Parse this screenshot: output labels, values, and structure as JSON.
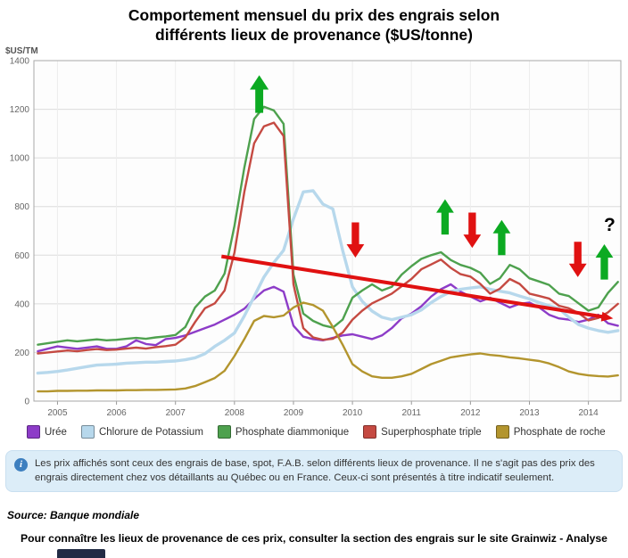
{
  "title": {
    "line1": "Comportement mensuel du prix des engrais selon",
    "line2": "différents lieux de provenance ($US/tonne)"
  },
  "chart_data": {
    "type": "line",
    "title": "Comportement mensuel du prix des engrais selon différents lieux de provenance ($US/tonne)",
    "y_axis_label": "$US/TM",
    "ylim": [
      0,
      1400
    ],
    "y_ticks": [
      0,
      200,
      400,
      600,
      800,
      1000,
      1200,
      1400
    ],
    "xlim": [
      2004.6,
      2014.55
    ],
    "x_tick_years": [
      2005,
      2006,
      2007,
      2008,
      2009,
      2010,
      2011,
      2012,
      2013,
      2014
    ],
    "grid": true,
    "legend_position": "bottom",
    "x": [
      2004.667,
      2004.833,
      2005,
      2005.167,
      2005.333,
      2005.5,
      2005.667,
      2005.833,
      2006,
      2006.167,
      2006.333,
      2006.5,
      2006.667,
      2006.833,
      2007,
      2007.167,
      2007.333,
      2007.5,
      2007.667,
      2007.833,
      2008,
      2008.167,
      2008.333,
      2008.5,
      2008.667,
      2008.833,
      2009,
      2009.167,
      2009.333,
      2009.5,
      2009.667,
      2009.833,
      2010,
      2010.167,
      2010.333,
      2010.5,
      2010.667,
      2010.833,
      2011,
      2011.167,
      2011.333,
      2011.5,
      2011.667,
      2011.833,
      2012,
      2012.167,
      2012.333,
      2012.5,
      2012.667,
      2012.833,
      2013,
      2013.167,
      2013.333,
      2013.5,
      2013.667,
      2013.833,
      2014,
      2014.167,
      2014.333,
      2014.5
    ],
    "series": [
      {
        "name": "Urée",
        "slug": "uree",
        "color": "#8d3cc8",
        "width": 2.4,
        "values": [
          205,
          215,
          225,
          220,
          215,
          220,
          225,
          215,
          215,
          225,
          250,
          235,
          230,
          255,
          260,
          270,
          285,
          300,
          315,
          335,
          355,
          380,
          420,
          455,
          470,
          450,
          310,
          265,
          255,
          250,
          260,
          270,
          275,
          265,
          255,
          270,
          300,
          340,
          360,
          390,
          430,
          460,
          480,
          450,
          430,
          410,
          425,
          405,
          385,
          400,
          405,
          385,
          355,
          340,
          335,
          325,
          335,
          355,
          320,
          310
        ]
      },
      {
        "name": "Chlorure de Potassium",
        "slug": "chlorure-de-potassium",
        "color": "#b7d8ec",
        "width": 3.4,
        "values": [
          115,
          118,
          122,
          128,
          135,
          142,
          148,
          150,
          152,
          156,
          158,
          160,
          160,
          163,
          165,
          170,
          178,
          195,
          225,
          250,
          280,
          350,
          430,
          510,
          570,
          620,
          750,
          860,
          865,
          810,
          790,
          620,
          470,
          410,
          370,
          345,
          335,
          345,
          355,
          375,
          405,
          430,
          450,
          460,
          465,
          470,
          460,
          452,
          445,
          432,
          420,
          405,
          392,
          380,
          345,
          315,
          300,
          290,
          283,
          290
        ]
      },
      {
        "name": "Phosphate diammonique",
        "slug": "phosphate-diammonique",
        "color": "#4ea14e",
        "width": 2.4,
        "values": [
          232,
          238,
          244,
          250,
          246,
          250,
          254,
          250,
          252,
          256,
          260,
          256,
          262,
          266,
          272,
          305,
          385,
          430,
          455,
          525,
          720,
          960,
          1160,
          1210,
          1195,
          1140,
          520,
          360,
          330,
          312,
          302,
          335,
          425,
          455,
          480,
          455,
          470,
          520,
          555,
          585,
          600,
          612,
          580,
          560,
          548,
          528,
          482,
          505,
          560,
          542,
          505,
          492,
          478,
          442,
          432,
          402,
          372,
          385,
          445,
          490
        ]
      },
      {
        "name": "Superphosphate triple",
        "slug": "superphosphate-triple",
        "color": "#c54a42",
        "width": 2.4,
        "values": [
          196,
          200,
          204,
          208,
          205,
          210,
          214,
          210,
          212,
          216,
          220,
          216,
          222,
          226,
          232,
          262,
          325,
          382,
          402,
          455,
          610,
          860,
          1060,
          1130,
          1145,
          1090,
          480,
          300,
          262,
          252,
          256,
          282,
          335,
          372,
          402,
          422,
          442,
          472,
          502,
          542,
          562,
          582,
          548,
          522,
          512,
          482,
          442,
          462,
          502,
          482,
          442,
          432,
          422,
          392,
          382,
          362,
          332,
          342,
          365,
          400
        ]
      },
      {
        "name": "Phosphate de roche",
        "slug": "phosphate-de-roche",
        "color": "#b3952e",
        "width": 2.4,
        "values": [
          40,
          40,
          42,
          42,
          43,
          43,
          44,
          44,
          44,
          45,
          45,
          46,
          46,
          47,
          48,
          52,
          62,
          78,
          95,
          125,
          185,
          255,
          330,
          350,
          345,
          352,
          385,
          405,
          395,
          372,
          305,
          232,
          152,
          122,
          102,
          96,
          96,
          102,
          112,
          132,
          152,
          166,
          180,
          186,
          192,
          196,
          190,
          186,
          180,
          176,
          170,
          165,
          155,
          140,
          122,
          112,
          106,
          103,
          101,
          106
        ]
      }
    ],
    "annotations": {
      "arrows": [
        {
          "dir": "up",
          "x": 2008.42,
          "v_top": 1340,
          "v_bottom": 1185,
          "color": "#0caa22"
        },
        {
          "dir": "down",
          "x": 2010.05,
          "v_top": 735,
          "v_bottom": 590,
          "color": "#e01111"
        },
        {
          "dir": "up",
          "x": 2011.57,
          "v_top": 830,
          "v_bottom": 685,
          "color": "#0caa22"
        },
        {
          "dir": "down",
          "x": 2012.03,
          "v_top": 775,
          "v_bottom": 630,
          "color": "#e01111"
        },
        {
          "dir": "up",
          "x": 2012.53,
          "v_top": 745,
          "v_bottom": 600,
          "color": "#0caa22"
        },
        {
          "dir": "down",
          "x": 2013.82,
          "v_top": 655,
          "v_bottom": 510,
          "color": "#e01111"
        },
        {
          "dir": "up",
          "x": 2014.27,
          "v_top": 645,
          "v_bottom": 500,
          "color": "#0caa22"
        }
      ],
      "question_mark": {
        "label": "?",
        "x": 2014.36,
        "v": 700
      },
      "trend_line": {
        "x1": 2007.78,
        "v1": 595,
        "x2": 2014.42,
        "v2": 340,
        "color": "#e01111"
      }
    }
  },
  "info_box": {
    "icon_glyph": "i",
    "text": "Les prix affichés sont ceux des engrais de base, spot, F.A.B. selon différents lieux de provenance. Il ne s'agit pas des prix des engrais directement chez vos détaillants au Québec ou en France. Ceux-ci sont présentés à titre indicatif seulement."
  },
  "source": "Source: Banque mondiale",
  "footer_note": "Pour connaître les lieux de provenance de ces prix, consulter la section des engrais sur le site Grainwiz - Analyse"
}
